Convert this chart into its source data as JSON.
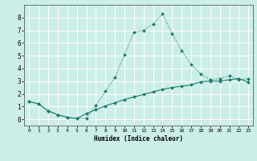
{
  "xlabel": "Humidex (Indice chaleur)",
  "bg_color": "#cceee8",
  "grid_color": "#ffffff",
  "line_color": "#1a7a6a",
  "xlim": [
    -0.5,
    23.5
  ],
  "ylim": [
    -0.5,
    9.0
  ],
  "xticks": [
    0,
    1,
    2,
    3,
    4,
    5,
    6,
    7,
    8,
    9,
    10,
    11,
    12,
    13,
    14,
    15,
    16,
    17,
    18,
    19,
    20,
    21,
    22,
    23
  ],
  "yticks": [
    0,
    1,
    2,
    3,
    4,
    5,
    6,
    7,
    8
  ],
  "line1_x": [
    0,
    1,
    2,
    3,
    4,
    5,
    6,
    7,
    8,
    9,
    10,
    11,
    12,
    13,
    14,
    15,
    16,
    17,
    18,
    19,
    20,
    21,
    22,
    23
  ],
  "line1_y": [
    1.4,
    1.2,
    0.65,
    0.35,
    0.15,
    0.05,
    0.05,
    1.1,
    2.2,
    3.3,
    5.1,
    6.85,
    7.0,
    7.5,
    8.3,
    6.75,
    5.4,
    4.3,
    3.55,
    3.1,
    3.2,
    3.4,
    3.1,
    3.2
  ],
  "line2_x": [
    0,
    1,
    2,
    3,
    4,
    5,
    6,
    7,
    8,
    9,
    10,
    11,
    12,
    13,
    14,
    15,
    16,
    17,
    18,
    19,
    20,
    21,
    22,
    23
  ],
  "line2_y": [
    1.4,
    1.2,
    0.65,
    0.35,
    0.15,
    0.05,
    0.45,
    0.75,
    1.05,
    1.3,
    1.55,
    1.75,
    1.95,
    2.15,
    2.35,
    2.5,
    2.6,
    2.7,
    2.95,
    3.0,
    3.0,
    3.1,
    3.2,
    2.9
  ]
}
